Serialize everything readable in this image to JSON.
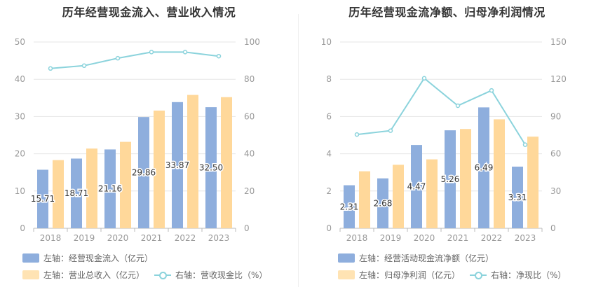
{
  "colors": {
    "bar1": "#8eaedd",
    "bar2": "#ffd89a",
    "line": "#8bd3dc",
    "grid": "#e6e6e6",
    "axis": "#999999"
  },
  "chart_data": [
    {
      "type": "bar",
      "title": "历年经营现金流入、营业收入情况",
      "categories": [
        "2018",
        "2019",
        "2020",
        "2021",
        "2022",
        "2023"
      ],
      "left_axis": {
        "ticks": [
          "0",
          "10",
          "20",
          "30",
          "40",
          "50"
        ],
        "ylim": [
          0,
          50
        ]
      },
      "right_axis": {
        "ticks": [
          "0",
          "20",
          "40",
          "60",
          "80",
          "100"
        ],
        "ylim": [
          0,
          100
        ]
      },
      "series": [
        {
          "name": "左轴：经营现金流入（亿元）",
          "axis": "left",
          "kind": "bar",
          "values": [
            15.71,
            18.71,
            21.16,
            29.86,
            33.87,
            32.5
          ],
          "labels": [
            "15.71",
            "18.71",
            "21.16",
            "29.86",
            "33.87",
            "32.50"
          ]
        },
        {
          "name": "左轴：营业总收入（亿元）",
          "axis": "left",
          "kind": "bar",
          "values": [
            18.3,
            21.4,
            23.2,
            31.6,
            35.8,
            35.2
          ]
        },
        {
          "name": "右轴：营收现金比（%）",
          "axis": "right",
          "kind": "line",
          "values": [
            85.8,
            87.3,
            91.3,
            94.6,
            94.6,
            92.4
          ]
        }
      ]
    },
    {
      "type": "bar",
      "title": "历年经营现金流净额、归母净利润情况",
      "categories": [
        "2018",
        "2019",
        "2020",
        "2021",
        "2022",
        "2023"
      ],
      "left_axis": {
        "ticks": [
          "0",
          "2",
          "4",
          "6",
          "8",
          "10"
        ],
        "ylim": [
          0,
          10
        ]
      },
      "right_axis": {
        "ticks": [
          "0",
          "30",
          "60",
          "90",
          "120",
          "150"
        ],
        "ylim": [
          0,
          150
        ]
      },
      "series": [
        {
          "name": "左轴：经营活动现金流净额（亿元）",
          "axis": "left",
          "kind": "bar",
          "values": [
            2.31,
            2.68,
            4.47,
            5.26,
            6.49,
            3.31
          ],
          "labels": [
            "2.31",
            "2.68",
            "4.47",
            "5.26",
            "6.49",
            "3.31"
          ]
        },
        {
          "name": "左轴：归母净利润（亿元）",
          "axis": "left",
          "kind": "bar",
          "values": [
            3.06,
            3.41,
            3.7,
            5.33,
            5.85,
            4.92
          ]
        },
        {
          "name": "右轴：净现比（%）",
          "axis": "right",
          "kind": "line",
          "values": [
            75.5,
            78.6,
            120.8,
            98.7,
            111.0,
            67.3
          ]
        }
      ]
    }
  ]
}
